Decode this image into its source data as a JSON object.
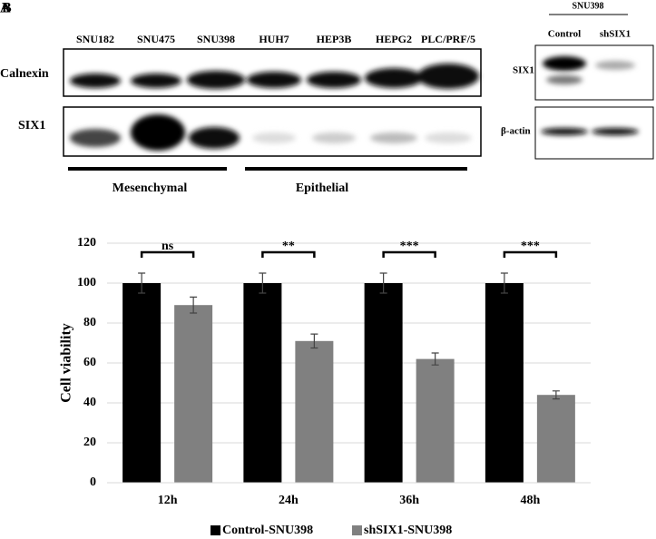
{
  "panel_labels": [
    "A",
    "B"
  ],
  "blots": {
    "lanes": [
      "SNU182",
      "SNU475",
      "SNU398",
      "HUH7",
      "HEP3B",
      "HEPG2",
      "PLC/PRF/5"
    ],
    "rows": [
      "Calnexin",
      "SIX1"
    ],
    "groups": [
      "Mesenchymal",
      "Epithelial"
    ]
  },
  "knockdown": {
    "cell_line": "SNU398",
    "lanes": [
      "Control",
      "shSIX1"
    ],
    "rows": [
      "SIX1",
      "β-actin"
    ]
  },
  "chart_data": {
    "type": "bar",
    "y_label": "Cell viability",
    "categories": [
      "12h",
      "24h",
      "36h",
      "48h"
    ],
    "series": [
      {
        "name": "Control-SNU398",
        "color": "#000000",
        "values": [
          100,
          100,
          100,
          100
        ],
        "errors": [
          5,
          5,
          5,
          5
        ]
      },
      {
        "name": "shSIX1-SNU398",
        "color": "#808080",
        "values": [
          89,
          71,
          62,
          44
        ],
        "errors": [
          4,
          3.5,
          3,
          2
        ]
      }
    ],
    "annotations": [
      "ns",
      "**",
      "***",
      "***"
    ],
    "ylim": [
      0,
      120
    ],
    "yticks": [
      0,
      20,
      40,
      60,
      80,
      100,
      120
    ],
    "grid": true,
    "legend": "bottom"
  }
}
